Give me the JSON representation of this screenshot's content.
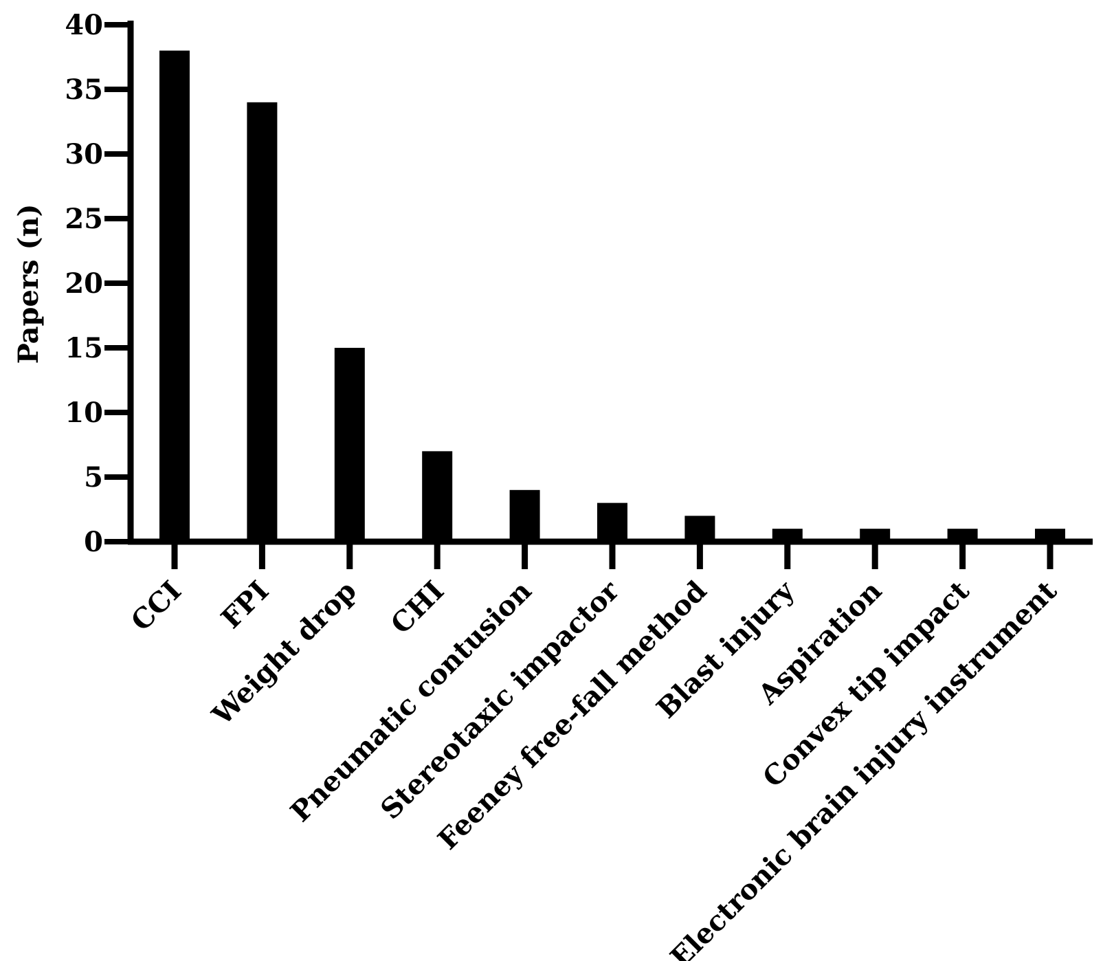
{
  "chart_data": {
    "type": "bar",
    "title": "",
    "xlabel": "",
    "ylabel": "Papers (n)",
    "ylim": [
      0,
      40
    ],
    "yticks": [
      0,
      5,
      10,
      15,
      20,
      25,
      30,
      35,
      40
    ],
    "grid": false,
    "categories": [
      "CCI",
      "FPI",
      "Weight drop",
      "CHI",
      "Pneumatic contusion",
      "Stereotaxic impactor",
      "Feeney free-fall method",
      "Blast injury",
      "Aspiration",
      "Convex tip impact",
      "Electronic brain injury instrument"
    ],
    "values": [
      38,
      34,
      15,
      7,
      4,
      3,
      2,
      1,
      1,
      1,
      1
    ],
    "bar_color": "#000000"
  }
}
